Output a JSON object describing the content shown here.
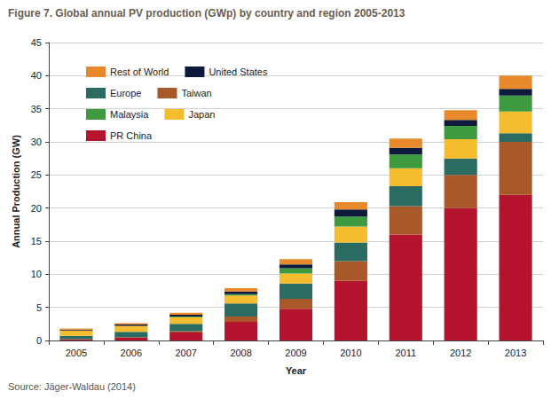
{
  "chart_data": {
    "type": "bar",
    "title": "Figure 7. Global annual PV production (GWp) by country and region 2005-2013",
    "source": "Source: Jäger-Waldau (2014)",
    "x_label": "Year",
    "y_label": "Annual Production (GW)",
    "categories": [
      "2005",
      "2006",
      "2007",
      "2008",
      "2009",
      "2010",
      "2011",
      "2012",
      "2013"
    ],
    "series": [
      {
        "name": "PR China",
        "color": "#b5142e",
        "values": [
          0.15,
          0.4,
          1.2,
          2.8,
          4.8,
          9.0,
          16.0,
          20.0,
          22.0
        ]
      },
      {
        "name": "Taiwan",
        "color": "#a9582a",
        "values": [
          0.05,
          0.1,
          0.2,
          0.8,
          1.5,
          3.0,
          4.3,
          5.0,
          8.0
        ]
      },
      {
        "name": "Europe",
        "color": "#2a6b62",
        "values": [
          0.5,
          0.8,
          1.1,
          2.0,
          2.3,
          2.8,
          3.0,
          2.5,
          1.3
        ]
      },
      {
        "name": "Japan",
        "color": "#f5bc2d",
        "values": [
          0.8,
          0.9,
          1.0,
          1.2,
          1.5,
          2.4,
          2.7,
          2.9,
          3.3
        ]
      },
      {
        "name": "Malaysia",
        "color": "#3d9a3f",
        "values": [
          0.0,
          0.0,
          0.1,
          0.2,
          0.8,
          1.5,
          2.1,
          2.0,
          2.4
        ]
      },
      {
        "name": "United States",
        "color": "#0d1a3c",
        "values": [
          0.15,
          0.2,
          0.3,
          0.4,
          0.6,
          1.1,
          1.0,
          0.9,
          1.0
        ]
      },
      {
        "name": "Rest of World",
        "color": "#e8892b",
        "values": [
          0.15,
          0.2,
          0.3,
          0.5,
          0.8,
          1.1,
          1.4,
          1.5,
          2.0
        ]
      }
    ],
    "ylim": [
      0,
      45
    ],
    "yticks": [
      0,
      5,
      10,
      15,
      20,
      25,
      30,
      35,
      40,
      45
    ],
    "grid": true,
    "stacked": true,
    "legend": "top-left"
  }
}
